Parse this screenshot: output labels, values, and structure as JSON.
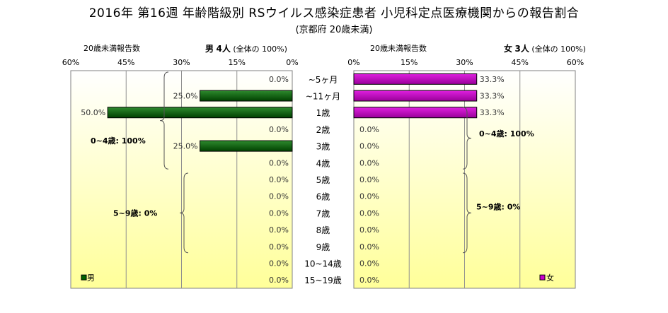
{
  "title": "2016年 第16週 年齢階級別 RSウイルス感染症患者 小児科定点医療機関からの報告割合",
  "subtitle": "(京都府 20歳未満)",
  "colors": {
    "male_bar": "#006400",
    "female_bar": "#CC00CC",
    "plot_bg_top": "#FFFFFF",
    "plot_bg_bottom": "#FFFF99"
  },
  "male_header": {
    "sub_label": "20歳未満報告数",
    "sex": "男",
    "count": "4人",
    "note": "(全体の 100%)"
  },
  "female_header": {
    "sub_label": "20歳未満報告数",
    "sex": "女",
    "count": "3人",
    "note": "(全体の 100%)"
  },
  "chart_data": {
    "type": "bar",
    "orientation": "horizontal-butterfly",
    "categories": [
      "~5ヶ月",
      "~11ヶ月",
      "1歳",
      "2歳",
      "3歳",
      "4歳",
      "5歳",
      "6歳",
      "7歳",
      "8歳",
      "9歳",
      "10~14歳",
      "15~19歳"
    ],
    "series": [
      {
        "name": "男",
        "values": [
          0.0,
          25.0,
          50.0,
          0.0,
          25.0,
          0.0,
          0.0,
          0.0,
          0.0,
          0.0,
          0.0,
          0.0,
          0.0
        ]
      },
      {
        "name": "女",
        "values": [
          33.3,
          33.3,
          33.3,
          0.0,
          0.0,
          0.0,
          0.0,
          0.0,
          0.0,
          0.0,
          0.0,
          0.0,
          0.0
        ]
      }
    ],
    "xlim": [
      0,
      60
    ],
    "xticks": [
      "0%",
      "15%",
      "30%",
      "45%",
      "60%"
    ],
    "legend": [
      "男",
      "女"
    ],
    "annotations": {
      "male": [
        "0~4歳: 100%",
        "5~9歳: 0%"
      ],
      "female": [
        "0~4歳: 100%",
        "5~9歳: 0%"
      ]
    },
    "grid": true
  }
}
